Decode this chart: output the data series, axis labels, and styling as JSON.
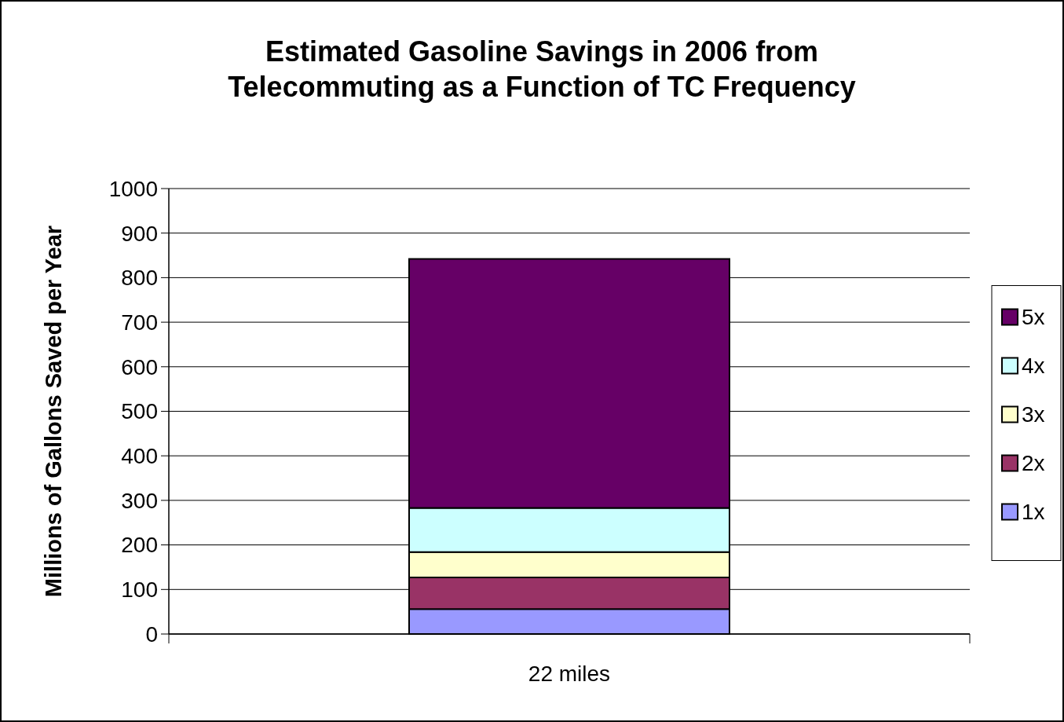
{
  "chart_data": {
    "type": "bar",
    "title": "Estimated Gasoline Savings in 2006 from Telecommuting as a Function of TC Frequency",
    "ylabel": "Millions of Gallons Saved per Year",
    "categories": [
      "22 miles"
    ],
    "stacked": true,
    "series": [
      {
        "name": "1x",
        "color": "#9999ff",
        "values": [
          56
        ]
      },
      {
        "name": "2x",
        "color": "#993366",
        "values": [
          71
        ]
      },
      {
        "name": "3x",
        "color": "#ffffcc",
        "values": [
          57
        ]
      },
      {
        "name": "4x",
        "color": "#ccffff",
        "values": [
          99
        ]
      },
      {
        "name": "5x",
        "color": "#660066",
        "values": [
          559
        ]
      }
    ],
    "ylim": [
      0,
      1000
    ],
    "yticks": [
      0,
      100,
      200,
      300,
      400,
      500,
      600,
      700,
      800,
      900,
      1000
    ],
    "grid": "y",
    "legend": "right"
  }
}
